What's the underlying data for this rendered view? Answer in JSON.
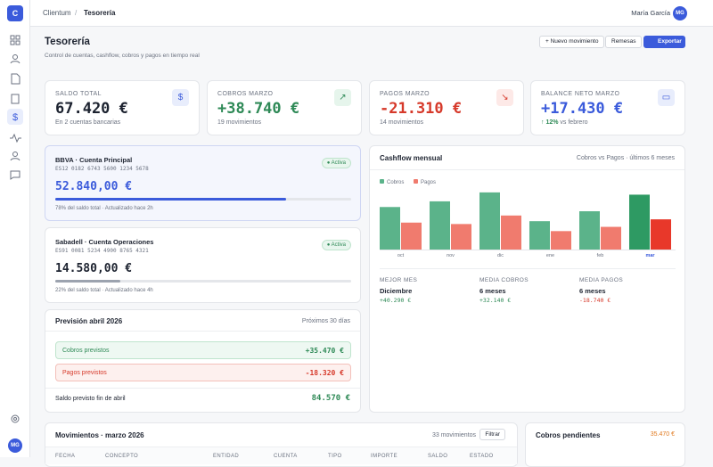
{
  "topbar": {
    "breadcrumb": [
      "Clientum",
      "/",
      "Tesorería"
    ],
    "user": "María García",
    "avatar": "MG"
  },
  "sidebar": {
    "logo": "C",
    "avatar": "MG"
  },
  "header": {
    "title": "Tesorería",
    "subtitle": "Control de cuentas, cashflow, cobros y pagos en tiempo real",
    "buttons": [
      "+ Nuevo movimiento",
      "Remesas",
      "Exportar"
    ]
  },
  "kpis": [
    {
      "label": "SALDO TOTAL",
      "value": "67.420 €",
      "sub": "En 2 cuentas bancarias"
    },
    {
      "label": "COBROS MARZO",
      "value": "+38.740 €",
      "sub": "19 movimientos"
    },
    {
      "label": "PAGOS MARZO",
      "value": "-21.310 €",
      "sub": "14 movimientos"
    },
    {
      "label": "BALANCE NETO MARZO",
      "value": "+17.430 €",
      "sub_strong": "↑ 12%",
      "sub": "vs febrero"
    }
  ],
  "accounts": [
    {
      "name": "BBVA · Cuenta Principal",
      "status": "● Activa",
      "iban": "ES12 0182 6743 5600 1234 5678",
      "balance": "52.840,00 €",
      "share": 78,
      "share_label": "78%",
      "footer": "del saldo total · Actualizado hace 2h"
    },
    {
      "name": "Sabadell · Cuenta Operaciones",
      "status": "● Activa",
      "iban": "ES91 0081 5234 4900 8765 4321",
      "balance": "14.580,00 €",
      "share": 22,
      "share_label": "22%",
      "footer": "del saldo total · Actualizado hace 4h"
    }
  ],
  "forecast": {
    "title": "Previsión abril 2026",
    "note": "Próximos 30 días",
    "rows": [
      [
        "Cobros previstos",
        "+35.470 €"
      ],
      [
        "Pagos previstos",
        "-18.320 €"
      ]
    ],
    "total_label": "Saldo previsto fin de abril",
    "total": "84.570 €"
  },
  "cashflow": {
    "title": "Cashflow mensual",
    "note": "Cobros vs Pagos · últimos 6 meses",
    "chart_data": {
      "type": "bar",
      "categories": [
        "oct",
        "nov",
        "dic",
        "ene",
        "feb",
        "mar"
      ],
      "series": [
        {
          "name": "Cobros",
          "color": "#5bb38a",
          "values": [
            30,
            34,
            40.3,
            20,
            27,
            38.7
          ]
        },
        {
          "name": "Pagos",
          "color": "#f07b6e",
          "values": [
            19,
            18,
            24,
            13,
            16,
            21.3
          ]
        }
      ],
      "ylim": [
        0,
        44
      ]
    },
    "stats": [
      [
        "MEJOR MES",
        "Diciembre",
        "+40.290 €"
      ],
      [
        "MEDIA COBROS",
        "6 meses",
        "+32.140 €"
      ],
      [
        "MEDIA PAGOS",
        "6 meses",
        "-18.740 €"
      ]
    ]
  },
  "movements": {
    "title": "Movimientos · marzo 2026",
    "count": "33 movimientos",
    "filter": "Filtrar",
    "columns": [
      "FECHA",
      "CONCEPTO",
      "ENTIDAD",
      "CUENTA",
      "TIPO",
      "IMPORTE",
      "SALDO",
      "ESTADO"
    ]
  },
  "pending": {
    "title": "Cobros pendientes",
    "amount": "35.470 €"
  }
}
